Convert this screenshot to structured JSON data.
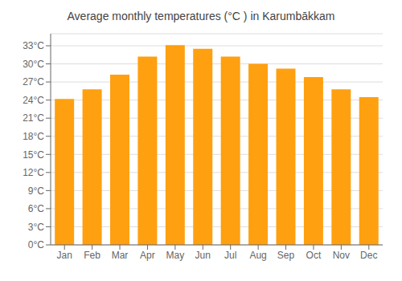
{
  "chart_data": {
    "type": "bar",
    "title": "Average monthly temperatures (°C ) in Karumbākkam",
    "categories": [
      "Jan",
      "Feb",
      "Mar",
      "Apr",
      "May",
      "Jun",
      "Jul",
      "Aug",
      "Sep",
      "Oct",
      "Nov",
      "Dec"
    ],
    "values": [
      24.2,
      25.8,
      28.2,
      31.2,
      33.1,
      32.5,
      31.2,
      30.0,
      29.2,
      27.8,
      25.8,
      24.5
    ],
    "color": "#FFA010",
    "ylim": [
      0,
      35
    ],
    "yticks": [
      {
        "value": 0,
        "label": "0°C"
      },
      {
        "value": 3,
        "label": "3°C"
      },
      {
        "value": 6,
        "label": "6°C"
      },
      {
        "value": 9,
        "label": "9°C"
      },
      {
        "value": 12,
        "label": "12°C"
      },
      {
        "value": 15,
        "label": "15°C"
      },
      {
        "value": 18,
        "label": "18°C"
      },
      {
        "value": 21,
        "label": "21°C"
      },
      {
        "value": 24,
        "label": "24°C"
      },
      {
        "value": 27,
        "label": "27°C"
      },
      {
        "value": 30,
        "label": "30°C"
      },
      {
        "value": 33,
        "label": "33°C"
      }
    ],
    "grid": true
  }
}
